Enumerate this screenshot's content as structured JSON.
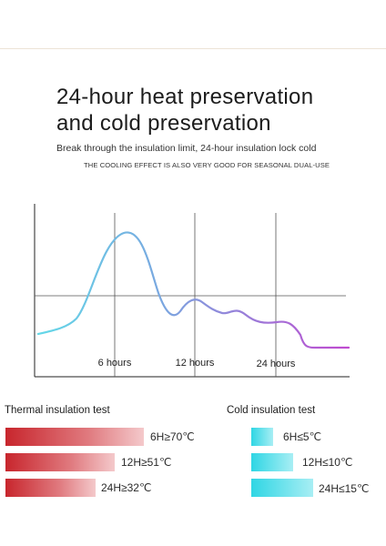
{
  "headline": {
    "line1": "24-hour heat preservation",
    "line2": "and cold preservation"
  },
  "subtitle": "Break through the insulation limit, 24-hour insulation lock cold",
  "caption": "THE COOLING EFFECT IS ALSO VERY GOOD FOR SEASONAL DUAL-USE",
  "chart": {
    "x_labels": [
      "6 hours",
      "12 hours",
      "24 hours"
    ],
    "curve_colors": {
      "start": "#63d9e8",
      "mid": "#7aa7e0",
      "end": "#c04ad0"
    }
  },
  "thermal": {
    "title": "Thermal insulation test",
    "color": "#c8262d",
    "rows": [
      {
        "label": "6H≥70℃"
      },
      {
        "label": "12H≥51℃"
      },
      {
        "label": "24H≥32℃"
      }
    ]
  },
  "cold": {
    "title": "Cold insulation test",
    "color": "#2fd6e4",
    "rows": [
      {
        "label": "6H≤5℃"
      },
      {
        "label": "12H≤10℃"
      },
      {
        "label": "24H≤15℃"
      }
    ]
  }
}
